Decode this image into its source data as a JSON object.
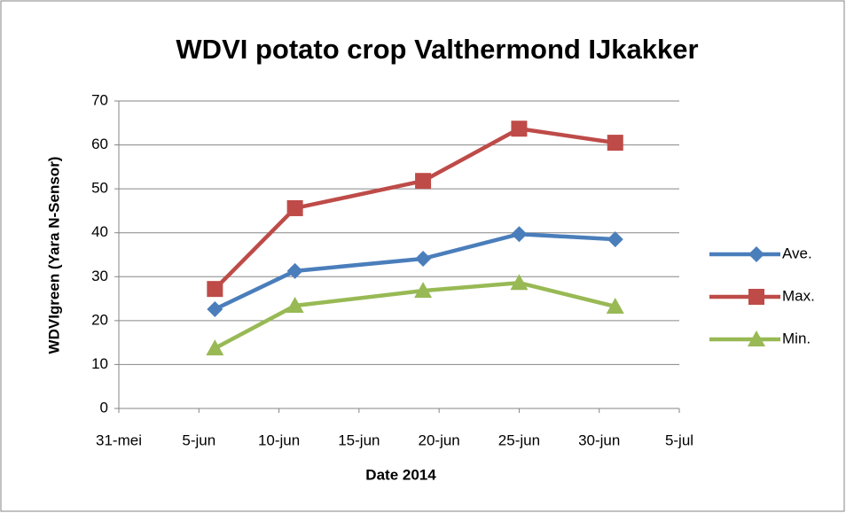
{
  "chart_data": {
    "type": "line",
    "title": "WDVI potato crop Valthermond IJkakker",
    "x_label": "Date 2014",
    "y_label": "WDVIgreen (Yara N-Sensor)",
    "x": [
      "2014-06-06",
      "2014-06-11",
      "2014-06-19",
      "2014-06-25",
      "2014-07-01"
    ],
    "xlim": [
      "2014-05-31",
      "2014-07-05"
    ],
    "xticks": [
      {
        "value": "2014-05-31",
        "label": "31-mei"
      },
      {
        "value": "2014-06-05",
        "label": "5-jun"
      },
      {
        "value": "2014-06-10",
        "label": "10-jun"
      },
      {
        "value": "2014-06-15",
        "label": "15-jun"
      },
      {
        "value": "2014-06-20",
        "label": "20-jun"
      },
      {
        "value": "2014-06-25",
        "label": "25-jun"
      },
      {
        "value": "2014-06-30",
        "label": "30-jun"
      },
      {
        "value": "2014-07-05",
        "label": "5-jul"
      }
    ],
    "ylim": [
      0,
      70
    ],
    "yticks": [
      0,
      10,
      20,
      30,
      40,
      50,
      60,
      70
    ],
    "grid": true,
    "legend": "right",
    "series": [
      {
        "name": "Ave.",
        "color": "#4a7ebb",
        "marker": "diamond",
        "values": [
          22.6,
          31.3,
          34.1,
          39.7,
          38.5
        ]
      },
      {
        "name": "Max.",
        "color": "#be4b48",
        "marker": "square",
        "values": [
          27.2,
          45.6,
          51.8,
          63.7,
          60.5
        ]
      },
      {
        "name": "Min.",
        "color": "#98b954",
        "marker": "triangle",
        "values": [
          13.7,
          23.4,
          26.8,
          28.6,
          23.2
        ]
      }
    ]
  }
}
